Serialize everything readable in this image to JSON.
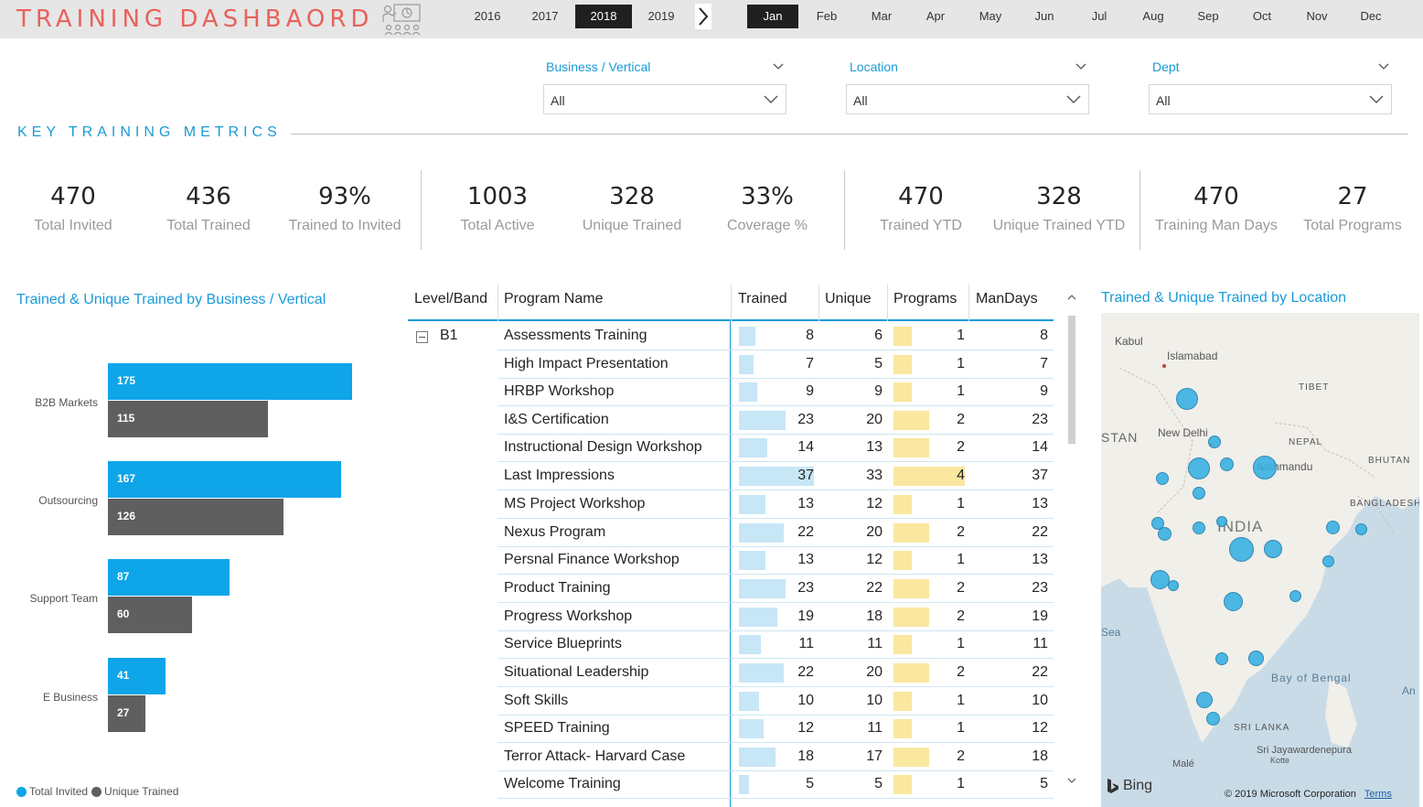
{
  "app": {
    "title": "TRAINING DASHBAORD"
  },
  "years": [
    "2016",
    "2017",
    "2018",
    "2019"
  ],
  "selected_year": "2018",
  "months": [
    "Jan",
    "Feb",
    "Mar",
    "Apr",
    "May",
    "Jun",
    "Jul",
    "Aug",
    "Sep",
    "Oct",
    "Nov",
    "Dec"
  ],
  "selected_month": "Jan",
  "filters": [
    {
      "label": "Business / Vertical",
      "value": "All"
    },
    {
      "label": "Location",
      "value": "All"
    },
    {
      "label": "Dept",
      "value": "All"
    }
  ],
  "section_title": "KEY TRAINING METRICS",
  "kpis": [
    {
      "value": "470",
      "label": "Total Invited"
    },
    {
      "value": "436",
      "label": "Total Trained"
    },
    {
      "value": "93%",
      "label": "Trained to Invited"
    },
    {
      "value": "1003",
      "label": "Total Active"
    },
    {
      "value": "328",
      "label": "Unique Trained"
    },
    {
      "value": "33%",
      "label": "Coverage %"
    },
    {
      "value": "470",
      "label": "Trained YTD"
    },
    {
      "value": "328",
      "label": "Unique Trained YTD"
    },
    {
      "value": "470",
      "label": "Training Man Days"
    },
    {
      "value": "27",
      "label": "Total Programs"
    }
  ],
  "chart_data": {
    "type": "bar",
    "title": "Trained & Unique Trained by Business / Vertical",
    "orientation": "horizontal",
    "categories": [
      "B2B Markets",
      "Outsourcing",
      "Support Team",
      "E Business"
    ],
    "series": [
      {
        "name": "Total Invited",
        "values": [
          175,
          167,
          87,
          41
        ],
        "color": "#0ea5e9"
      },
      {
        "name": "Unique Trained",
        "values": [
          115,
          126,
          60,
          27
        ],
        "color": "#5f5f5f"
      }
    ],
    "legend": "bottom-left"
  },
  "table": {
    "headers": [
      "Level/Band",
      "Program Name",
      "Trained",
      "Unique",
      "Programs",
      "ManDays"
    ],
    "level": "B1",
    "rows": [
      {
        "program": "Assessments Training",
        "trained": "8",
        "unique": "6",
        "programs": "1",
        "mandays": "8"
      },
      {
        "program": "High Impact Presentation",
        "trained": "7",
        "unique": "5",
        "programs": "1",
        "mandays": "7"
      },
      {
        "program": "HRBP Workshop",
        "trained": "9",
        "unique": "9",
        "programs": "1",
        "mandays": "9"
      },
      {
        "program": "I&S Certification",
        "trained": "23",
        "unique": "20",
        "programs": "2",
        "mandays": "23"
      },
      {
        "program": "Instructional Design Workshop",
        "trained": "14",
        "unique": "13",
        "programs": "2",
        "mandays": "14"
      },
      {
        "program": "Last Impressions",
        "trained": "37",
        "unique": "33",
        "programs": "4",
        "mandays": "37"
      },
      {
        "program": "MS Project Workshop",
        "trained": "13",
        "unique": "12",
        "programs": "1",
        "mandays": "13"
      },
      {
        "program": "Nexus Program",
        "trained": "22",
        "unique": "20",
        "programs": "2",
        "mandays": "22"
      },
      {
        "program": "Persnal Finance Workshop",
        "trained": "13",
        "unique": "12",
        "programs": "1",
        "mandays": "13"
      },
      {
        "program": "Product Training",
        "trained": "23",
        "unique": "22",
        "programs": "2",
        "mandays": "23"
      },
      {
        "program": "Progress Workshop",
        "trained": "19",
        "unique": "18",
        "programs": "2",
        "mandays": "19"
      },
      {
        "program": "Service Blueprints",
        "trained": "11",
        "unique": "11",
        "programs": "1",
        "mandays": "11"
      },
      {
        "program": "Situational Leadership",
        "trained": "22",
        "unique": "20",
        "programs": "2",
        "mandays": "22"
      },
      {
        "program": "Soft Skills",
        "trained": "10",
        "unique": "10",
        "programs": "1",
        "mandays": "10"
      },
      {
        "program": "SPEED Training",
        "trained": "12",
        "unique": "11",
        "programs": "1",
        "mandays": "12"
      },
      {
        "program": "Terror Attack- Harvard Case",
        "trained": "18",
        "unique": "17",
        "programs": "2",
        "mandays": "18"
      },
      {
        "program": "Welcome Training",
        "trained": "5",
        "unique": "5",
        "programs": "1",
        "mandays": "5"
      }
    ]
  },
  "map": {
    "title": "Trained & Unique Trained by Location",
    "labels": [
      "Kabul",
      "Islamabad",
      "TIBET",
      "New Delhi",
      "NEPAL",
      "Kathmandu",
      "BHUTAN",
      "STAN",
      "INDIA",
      "BANGLADESH",
      "Sea",
      "Bay of Bengal",
      "An",
      "SRI LANKA",
      "Sri Jayawardenepura",
      "Kotte",
      "Malé"
    ],
    "bing": "Bing",
    "copyright": "© 2019 Microsoft Corporation",
    "terms": "Terms"
  },
  "colors": {
    "accent": "#1a9bd7",
    "title_red": "#e8625b",
    "bar_invited": "#0ea5e9",
    "bar_unique": "#5f5f5f",
    "databar_trained": "#c7e6f6",
    "databar_programs": "#fae7a0"
  }
}
